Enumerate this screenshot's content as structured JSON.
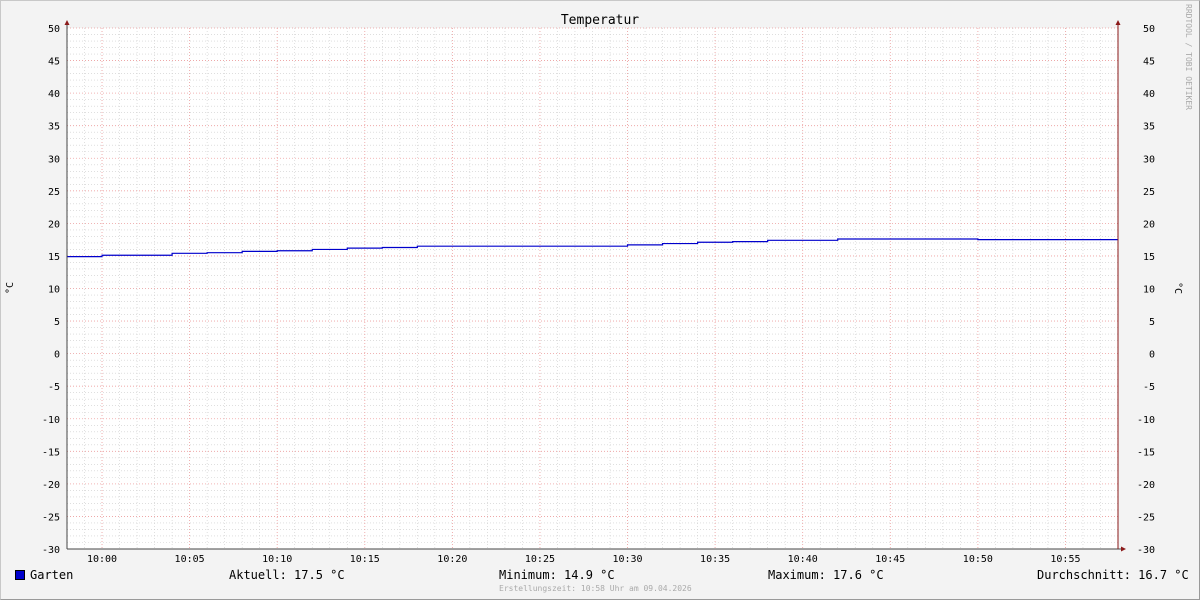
{
  "chart_data": {
    "type": "line",
    "title": "Temperatur",
    "ylabel": "°C",
    "ylabel_right": "°C",
    "ylim": [
      -30,
      50
    ],
    "yticks": [
      50,
      45,
      40,
      35,
      30,
      25,
      20,
      15,
      10,
      5,
      0,
      -5,
      -10,
      -15,
      -20,
      -25,
      -30
    ],
    "xlim": [
      "09:58",
      "10:58"
    ],
    "xticks": [
      "10:00",
      "10:05",
      "10:10",
      "10:15",
      "10:20",
      "10:25",
      "10:30",
      "10:35",
      "10:40",
      "10:45",
      "10:50",
      "10:55"
    ],
    "grid": true,
    "step": true,
    "series": [
      {
        "name": "Garten",
        "color": "#0000cc",
        "x": [
          "09:58",
          "10:00",
          "10:04",
          "10:06",
          "10:08",
          "10:10",
          "10:12",
          "10:14",
          "10:16",
          "10:18",
          "10:30",
          "10:32",
          "10:34",
          "10:36",
          "10:38",
          "10:42",
          "10:50"
        ],
        "values": [
          14.9,
          15.1,
          15.4,
          15.5,
          15.7,
          15.8,
          16.0,
          16.2,
          16.3,
          16.5,
          16.7,
          16.9,
          17.1,
          17.2,
          17.4,
          17.6,
          17.5
        ]
      }
    ]
  },
  "legend": {
    "series_name": "Garten",
    "swatch_color": "#0000cc",
    "current": "Aktuell: 17.5 °C",
    "minimum": "Minimum: 14.9 °C",
    "maximum": "Maximum: 17.6 °C",
    "average": "Durchschnitt: 16.7 °C"
  },
  "footer": "Erstellungszeit: 10:58 Uhr am 09.04.2026",
  "watermark": "RRDTOOL / TOBI OETIKER",
  "colors": {
    "axis": "#8b1a1a",
    "major_grid": "#f0a0a0",
    "minor_grid": "#cccccc",
    "plot_bg": "#ffffff",
    "canvas_bg": "#f3f3f3"
  }
}
